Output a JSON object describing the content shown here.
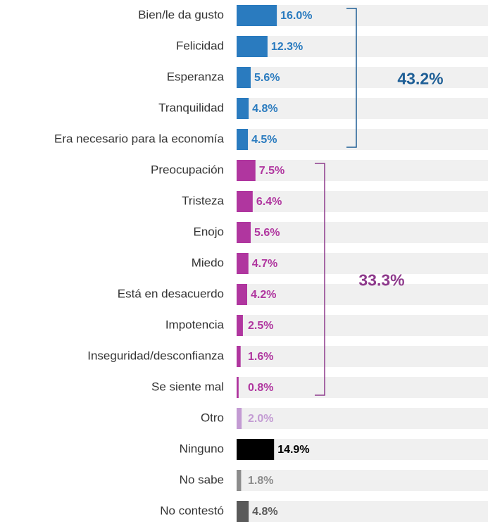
{
  "chart_data": {
    "type": "bar",
    "orientation": "horizontal",
    "categories": [
      "Bien/le da gusto",
      "Felicidad",
      "Esperanza",
      "Tranquilidad",
      "Era necesario para la economía",
      "Preocupación",
      "Tristeza",
      "Enojo",
      "Miedo",
      "Está en desacuerdo",
      "Impotencia",
      "Inseguridad/desconfianza",
      "Se siente mal",
      "Otro",
      "Ninguno",
      "No sabe",
      "No contestó"
    ],
    "values": [
      16.0,
      12.3,
      5.6,
      4.8,
      4.5,
      7.5,
      6.4,
      5.6,
      4.7,
      4.2,
      2.5,
      1.6,
      0.8,
      2.0,
      14.9,
      1.8,
      4.8
    ],
    "value_labels": [
      "16.0%",
      "12.3%",
      "5.6%",
      "4.8%",
      "4.5%",
      "7.5%",
      "6.4%",
      "5.6%",
      "4.7%",
      "4.2%",
      "2.5%",
      "1.6%",
      "0.8%",
      "2.0%",
      "14.9%",
      "1.8%",
      "4.8%"
    ],
    "colors": [
      "#2a7bbf",
      "#2a7bbf",
      "#2a7bbf",
      "#2a7bbf",
      "#2a7bbf",
      "#b0369f",
      "#b0369f",
      "#b0369f",
      "#b0369f",
      "#b0369f",
      "#b0369f",
      "#b0369f",
      "#b0369f",
      "#c39bd3",
      "#000000",
      "#8c8c8c",
      "#5a5a5a"
    ],
    "xlim": [
      0,
      100
    ],
    "annotations": [
      {
        "text": "43.2%",
        "color": "#1f5f96"
      },
      {
        "text": "33.3%",
        "color": "#8e3a8c"
      }
    ]
  }
}
